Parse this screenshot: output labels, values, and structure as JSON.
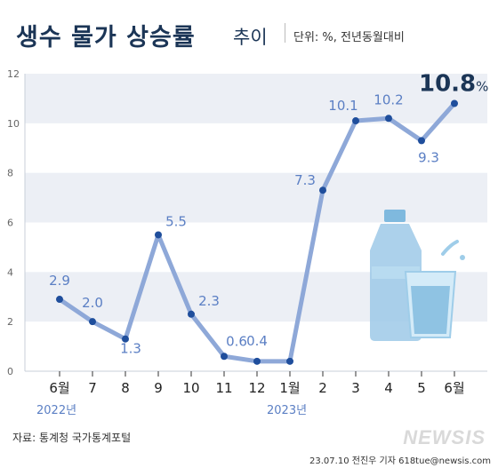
{
  "header": {
    "title": "생수 물가 상승률",
    "subtitle": "추이",
    "unit": "단위: %, 전년동월대비"
  },
  "footer": {
    "source": "자료: 통계청 국가통계포털",
    "credit": "23.07.10 전진우 기자 618tue@newsis.com",
    "logo": "NEWSIS"
  },
  "colors": {
    "line": "#8ea8d8",
    "point": "#1f4e9c",
    "label": "#5b7fc4",
    "highlight": "#1b3556",
    "band": "#eceff5",
    "title": "#1b3556",
    "bottle": "#9ec9e8",
    "glass": "#8fc3e3"
  },
  "chart_data": {
    "type": "line",
    "categories": [
      "6월",
      "7",
      "8",
      "9",
      "10",
      "11",
      "12",
      "1월",
      "2",
      "3",
      "4",
      "5",
      "6월"
    ],
    "year_labels": [
      {
        "text": "2022년",
        "index": 0
      },
      {
        "text": "2023년",
        "index": 7
      }
    ],
    "values": [
      2.9,
      2.0,
      1.3,
      5.5,
      2.3,
      0.6,
      0.4,
      0.4,
      7.3,
      10.1,
      10.2,
      9.3,
      10.8
    ],
    "data_labels": [
      "2.9",
      "2.0",
      "1.3",
      "5.5",
      "2.3",
      "0.6",
      "0.4",
      "",
      "7.3",
      "10.1",
      "10.2",
      "9.3",
      "10.8"
    ],
    "highlight_suffix": "%",
    "y_ticks": [
      "0",
      "2",
      "4",
      "6",
      "8",
      "10",
      "12"
    ],
    "ylim": [
      0,
      12
    ],
    "title": "생수 물가 상승률 추이",
    "xlabel": "",
    "ylabel": ""
  }
}
